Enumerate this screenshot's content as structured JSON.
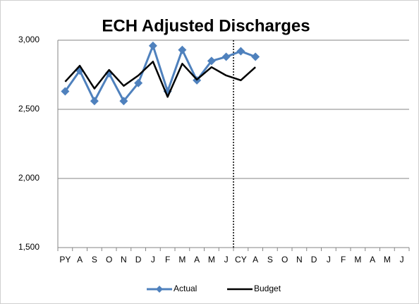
{
  "chart_data": {
    "type": "line",
    "title": "ECH Adjusted Discharges",
    "categories": [
      "PY",
      "A",
      "S",
      "O",
      "N",
      "D",
      "J",
      "F",
      "M",
      "A",
      "M",
      "J",
      "CY",
      "A",
      "S",
      "O",
      "N",
      "D",
      "J",
      "F",
      "M",
      "A",
      "M",
      "J"
    ],
    "series": [
      {
        "name": "Actual",
        "color": "#4f81bd",
        "marker": "diamond",
        "values": [
          2630,
          2780,
          2560,
          2760,
          2560,
          2690,
          2960,
          2630,
          2930,
          2710,
          2850,
          2880,
          2920,
          2880,
          null,
          null,
          null,
          null,
          null,
          null,
          null,
          null,
          null,
          null
        ]
      },
      {
        "name": "Budget",
        "color": "#000000",
        "values": [
          2700,
          2815,
          2650,
          2785,
          2670,
          2745,
          2845,
          2590,
          2830,
          2715,
          2805,
          2745,
          2710,
          2805,
          null,
          null,
          null,
          null,
          null,
          null,
          null,
          null,
          null,
          null
        ]
      }
    ],
    "ylim": [
      1500,
      3000
    ],
    "yticks": [
      {
        "value": 1500,
        "label": "1,500"
      },
      {
        "value": 2000,
        "label": "2,000"
      },
      {
        "value": 2500,
        "label": "2,500"
      },
      {
        "value": 3000,
        "label": "3,000"
      }
    ],
    "grid": true,
    "legend": "bottom"
  }
}
